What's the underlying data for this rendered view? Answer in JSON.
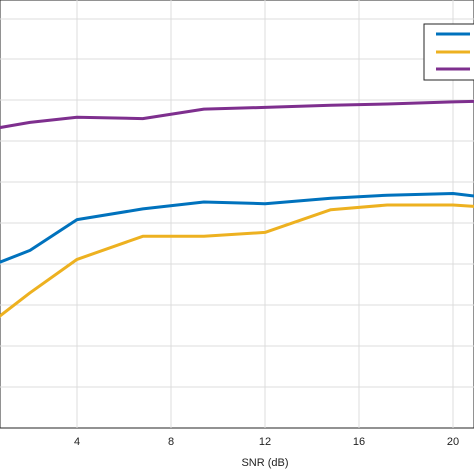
{
  "chart_data": {
    "type": "line",
    "xlabel": "SNR (dB)",
    "ylabel": "",
    "title": "",
    "x_ticks": [
      4,
      8,
      12,
      16,
      20
    ],
    "xlim": [
      0,
      21.7
    ],
    "ylim": [
      0,
      1
    ],
    "grid": true,
    "legend_placement": "top-right",
    "series": [
      {
        "color": "#0072BD",
        "x": [
          0,
          2,
          4,
          6.8,
          9.4,
          12,
          14.8,
          17.2,
          20,
          21.7
        ],
        "y": [
          0.372,
          0.415,
          0.487,
          0.512,
          0.528,
          0.524,
          0.537,
          0.544,
          0.548,
          0.537
        ]
      },
      {
        "color": "#EDB120",
        "x": [
          0,
          0.7,
          2,
          4,
          6.8,
          9.4,
          12,
          14.8,
          17.2,
          20,
          21.7
        ],
        "y": [
          0.246,
          0.261,
          0.316,
          0.394,
          0.448,
          0.448,
          0.457,
          0.51,
          0.521,
          0.521,
          0.515
        ]
      },
      {
        "color": "#7E2F8E",
        "x": [
          0,
          2,
          4,
          6.8,
          9.4,
          12,
          14.8,
          17.2,
          20,
          21.7
        ],
        "y": [
          0.695,
          0.714,
          0.726,
          0.723,
          0.745,
          0.749,
          0.754,
          0.757,
          0.762,
          0.764
        ]
      }
    ]
  }
}
